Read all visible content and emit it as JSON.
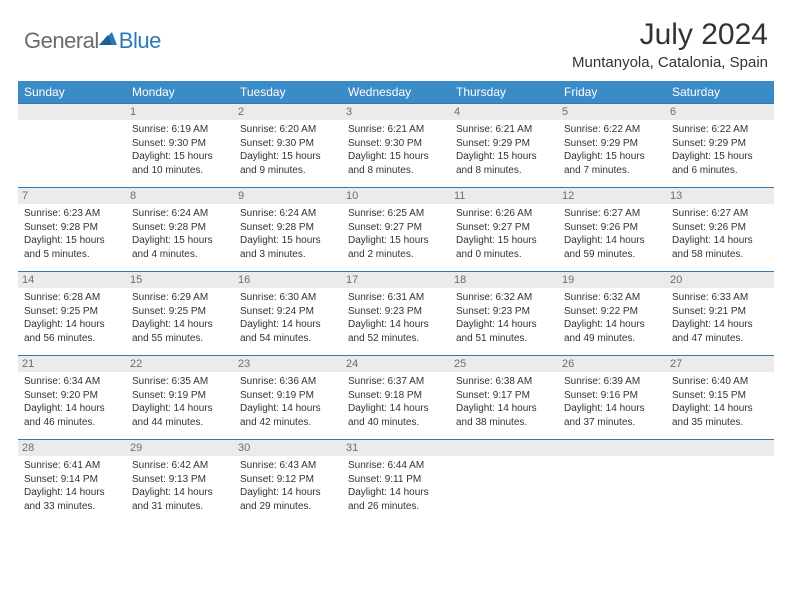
{
  "logo": {
    "text1": "General",
    "text2": "Blue"
  },
  "header": {
    "title": "July 2024",
    "location": "Muntanyola, Catalonia, Spain"
  },
  "style": {
    "header_bg": "#3b8bc6",
    "rule_color": "#2a7ab8",
    "daynum_bg": "#ebebeb",
    "daynum_color": "#6d6d6d",
    "text_color": "#333333",
    "logo_gray": "#6b6b6b",
    "logo_blue": "#2a7ab8"
  },
  "dow": [
    "Sunday",
    "Monday",
    "Tuesday",
    "Wednesday",
    "Thursday",
    "Friday",
    "Saturday"
  ],
  "weeks": [
    [
      {
        "n": "",
        "sr": "",
        "ss": "",
        "dl": ""
      },
      {
        "n": "1",
        "sr": "Sunrise: 6:19 AM",
        "ss": "Sunset: 9:30 PM",
        "dl": "Daylight: 15 hours and 10 minutes."
      },
      {
        "n": "2",
        "sr": "Sunrise: 6:20 AM",
        "ss": "Sunset: 9:30 PM",
        "dl": "Daylight: 15 hours and 9 minutes."
      },
      {
        "n": "3",
        "sr": "Sunrise: 6:21 AM",
        "ss": "Sunset: 9:30 PM",
        "dl": "Daylight: 15 hours and 8 minutes."
      },
      {
        "n": "4",
        "sr": "Sunrise: 6:21 AM",
        "ss": "Sunset: 9:29 PM",
        "dl": "Daylight: 15 hours and 8 minutes."
      },
      {
        "n": "5",
        "sr": "Sunrise: 6:22 AM",
        "ss": "Sunset: 9:29 PM",
        "dl": "Daylight: 15 hours and 7 minutes."
      },
      {
        "n": "6",
        "sr": "Sunrise: 6:22 AM",
        "ss": "Sunset: 9:29 PM",
        "dl": "Daylight: 15 hours and 6 minutes."
      }
    ],
    [
      {
        "n": "7",
        "sr": "Sunrise: 6:23 AM",
        "ss": "Sunset: 9:28 PM",
        "dl": "Daylight: 15 hours and 5 minutes."
      },
      {
        "n": "8",
        "sr": "Sunrise: 6:24 AM",
        "ss": "Sunset: 9:28 PM",
        "dl": "Daylight: 15 hours and 4 minutes."
      },
      {
        "n": "9",
        "sr": "Sunrise: 6:24 AM",
        "ss": "Sunset: 9:28 PM",
        "dl": "Daylight: 15 hours and 3 minutes."
      },
      {
        "n": "10",
        "sr": "Sunrise: 6:25 AM",
        "ss": "Sunset: 9:27 PM",
        "dl": "Daylight: 15 hours and 2 minutes."
      },
      {
        "n": "11",
        "sr": "Sunrise: 6:26 AM",
        "ss": "Sunset: 9:27 PM",
        "dl": "Daylight: 15 hours and 0 minutes."
      },
      {
        "n": "12",
        "sr": "Sunrise: 6:27 AM",
        "ss": "Sunset: 9:26 PM",
        "dl": "Daylight: 14 hours and 59 minutes."
      },
      {
        "n": "13",
        "sr": "Sunrise: 6:27 AM",
        "ss": "Sunset: 9:26 PM",
        "dl": "Daylight: 14 hours and 58 minutes."
      }
    ],
    [
      {
        "n": "14",
        "sr": "Sunrise: 6:28 AM",
        "ss": "Sunset: 9:25 PM",
        "dl": "Daylight: 14 hours and 56 minutes."
      },
      {
        "n": "15",
        "sr": "Sunrise: 6:29 AM",
        "ss": "Sunset: 9:25 PM",
        "dl": "Daylight: 14 hours and 55 minutes."
      },
      {
        "n": "16",
        "sr": "Sunrise: 6:30 AM",
        "ss": "Sunset: 9:24 PM",
        "dl": "Daylight: 14 hours and 54 minutes."
      },
      {
        "n": "17",
        "sr": "Sunrise: 6:31 AM",
        "ss": "Sunset: 9:23 PM",
        "dl": "Daylight: 14 hours and 52 minutes."
      },
      {
        "n": "18",
        "sr": "Sunrise: 6:32 AM",
        "ss": "Sunset: 9:23 PM",
        "dl": "Daylight: 14 hours and 51 minutes."
      },
      {
        "n": "19",
        "sr": "Sunrise: 6:32 AM",
        "ss": "Sunset: 9:22 PM",
        "dl": "Daylight: 14 hours and 49 minutes."
      },
      {
        "n": "20",
        "sr": "Sunrise: 6:33 AM",
        "ss": "Sunset: 9:21 PM",
        "dl": "Daylight: 14 hours and 47 minutes."
      }
    ],
    [
      {
        "n": "21",
        "sr": "Sunrise: 6:34 AM",
        "ss": "Sunset: 9:20 PM",
        "dl": "Daylight: 14 hours and 46 minutes."
      },
      {
        "n": "22",
        "sr": "Sunrise: 6:35 AM",
        "ss": "Sunset: 9:19 PM",
        "dl": "Daylight: 14 hours and 44 minutes."
      },
      {
        "n": "23",
        "sr": "Sunrise: 6:36 AM",
        "ss": "Sunset: 9:19 PM",
        "dl": "Daylight: 14 hours and 42 minutes."
      },
      {
        "n": "24",
        "sr": "Sunrise: 6:37 AM",
        "ss": "Sunset: 9:18 PM",
        "dl": "Daylight: 14 hours and 40 minutes."
      },
      {
        "n": "25",
        "sr": "Sunrise: 6:38 AM",
        "ss": "Sunset: 9:17 PM",
        "dl": "Daylight: 14 hours and 38 minutes."
      },
      {
        "n": "26",
        "sr": "Sunrise: 6:39 AM",
        "ss": "Sunset: 9:16 PM",
        "dl": "Daylight: 14 hours and 37 minutes."
      },
      {
        "n": "27",
        "sr": "Sunrise: 6:40 AM",
        "ss": "Sunset: 9:15 PM",
        "dl": "Daylight: 14 hours and 35 minutes."
      }
    ],
    [
      {
        "n": "28",
        "sr": "Sunrise: 6:41 AM",
        "ss": "Sunset: 9:14 PM",
        "dl": "Daylight: 14 hours and 33 minutes."
      },
      {
        "n": "29",
        "sr": "Sunrise: 6:42 AM",
        "ss": "Sunset: 9:13 PM",
        "dl": "Daylight: 14 hours and 31 minutes."
      },
      {
        "n": "30",
        "sr": "Sunrise: 6:43 AM",
        "ss": "Sunset: 9:12 PM",
        "dl": "Daylight: 14 hours and 29 minutes."
      },
      {
        "n": "31",
        "sr": "Sunrise: 6:44 AM",
        "ss": "Sunset: 9:11 PM",
        "dl": "Daylight: 14 hours and 26 minutes."
      },
      {
        "n": "",
        "sr": "",
        "ss": "",
        "dl": ""
      },
      {
        "n": "",
        "sr": "",
        "ss": "",
        "dl": ""
      },
      {
        "n": "",
        "sr": "",
        "ss": "",
        "dl": ""
      }
    ]
  ]
}
